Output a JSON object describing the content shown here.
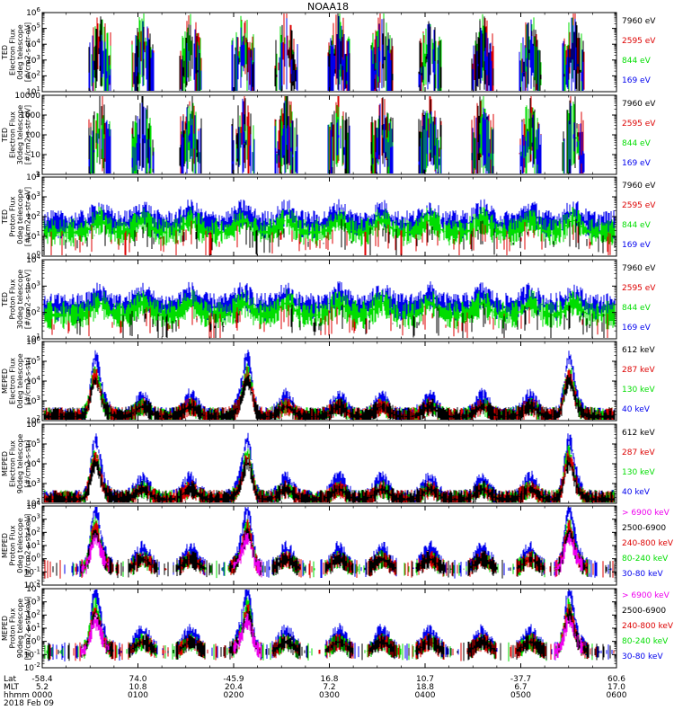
{
  "title": "NOAA18",
  "colors": {
    "black": "#000000",
    "red": "#dd0000",
    "green": "#00dd00",
    "blue": "#0000ee",
    "magenta": "#ee00ee"
  },
  "panels": [
    {
      "ylabel": [
        "TED",
        "Electron Flux",
        "0deg telescope",
        "[#/cm2-s-str-eV]"
      ],
      "yticks": [
        "10^1",
        "10^2",
        "10^3",
        "10^4",
        "10^5",
        "10^6"
      ],
      "legend": [
        {
          "label": "7960 eV",
          "color": "#000000"
        },
        {
          "label": "2595 eV",
          "color": "#dd0000"
        },
        {
          "label": "844 eV",
          "color": "#00dd00"
        },
        {
          "label": "169 eV",
          "color": "#0000ee"
        }
      ]
    },
    {
      "ylabel": [
        "TED",
        "Electron Flux",
        "30deg telescope",
        "[#/cm2-s-str-eV]"
      ],
      "yticks": [
        "1",
        "10",
        "100",
        "1000",
        "10000"
      ],
      "legend": [
        {
          "label": "7960 eV",
          "color": "#000000"
        },
        {
          "label": "2595 eV",
          "color": "#dd0000"
        },
        {
          "label": "844 eV",
          "color": "#00dd00"
        },
        {
          "label": "169 eV",
          "color": "#0000ee"
        }
      ]
    },
    {
      "ylabel": [
        "TED",
        "Proton Flux",
        "0deg telescope",
        "[#/cm2-s-str-eV]"
      ],
      "yticks": [
        "10^0",
        "10^1",
        "10^2",
        "10^3",
        "10^4"
      ],
      "legend": [
        {
          "label": "7960 eV",
          "color": "#000000"
        },
        {
          "label": "2595 eV",
          "color": "#dd0000"
        },
        {
          "label": "844 eV",
          "color": "#00dd00"
        },
        {
          "label": "169 eV",
          "color": "#0000ee"
        }
      ]
    },
    {
      "ylabel": [
        "TED",
        "Proton Flux",
        "30deg telescope",
        "[#/cm2-s-str-eV]"
      ],
      "yticks": [
        "10^1",
        "10^2",
        "10^3",
        "10^4"
      ],
      "legend": [
        {
          "label": "7960 eV",
          "color": "#000000"
        },
        {
          "label": "2595 eV",
          "color": "#dd0000"
        },
        {
          "label": "844 eV",
          "color": "#00dd00"
        },
        {
          "label": "169 eV",
          "color": "#0000ee"
        }
      ]
    },
    {
      "ylabel": [
        "MEPED",
        "Electron Flux",
        "0deg telescope",
        "[#/cm2-s-str]"
      ],
      "yticks": [
        "10^2",
        "10^3",
        "10^4",
        "10^5",
        "10^6"
      ],
      "legend": [
        {
          "label": "612 keV",
          "color": "#000000"
        },
        {
          "label": "287 keV",
          "color": "#dd0000"
        },
        {
          "label": "130 keV",
          "color": "#00dd00"
        },
        {
          "label": "40 keV",
          "color": "#0000ee"
        }
      ]
    },
    {
      "ylabel": [
        "MEPED",
        "Electron Flux",
        "90deg telescope",
        "[#/cm2-s-str]"
      ],
      "yticks": [
        "10^2",
        "10^3",
        "10^4",
        "10^5",
        "10^6"
      ],
      "legend": [
        {
          "label": "612 keV",
          "color": "#000000"
        },
        {
          "label": "287 keV",
          "color": "#dd0000"
        },
        {
          "label": "130 keV",
          "color": "#00dd00"
        },
        {
          "label": "40 keV",
          "color": "#0000ee"
        }
      ]
    },
    {
      "ylabel": [
        "MEPED",
        "Proton Flux",
        "0deg telescope",
        "[#/cm2-s-str-keV]"
      ],
      "yticks": [
        "10^-2",
        "10^-1",
        "10^0",
        "10^1",
        "10^2",
        "10^3",
        "10^4"
      ],
      "legend": [
        {
          "label": "> 6900 keV",
          "color": "#ee00ee"
        },
        {
          "label": "2500-6900",
          "color": "#000000"
        },
        {
          "label": "240-800 keV",
          "color": "#dd0000"
        },
        {
          "label": "80-240 keV",
          "color": "#00dd00"
        },
        {
          "label": "30-80 keV",
          "color": "#0000ee"
        }
      ]
    },
    {
      "ylabel": [
        "MEPED",
        "Proton Flux",
        "90deg telescope",
        "[#/cm2-s-str-keV]"
      ],
      "yticks": [
        "10^-2",
        "10^-1",
        "10^0",
        "10^1",
        "10^2",
        "10^3",
        "10^4"
      ],
      "legend": [
        {
          "label": "> 6900 keV",
          "color": "#ee00ee"
        },
        {
          "label": "2500-6900",
          "color": "#000000"
        },
        {
          "label": "240-800 keV",
          "color": "#dd0000"
        },
        {
          "label": "80-240 keV",
          "color": "#00dd00"
        },
        {
          "label": "30-80 keV",
          "color": "#0000ee"
        }
      ]
    }
  ],
  "xaxis": {
    "row_labels": [
      "Lat",
      "MLT",
      "hhmm",
      "2018 Feb 09"
    ],
    "ticks": [
      {
        "lat": "-58.4",
        "mlt": "5.2",
        "hhmm": "0000"
      },
      {
        "lat": "74.0",
        "mlt": "10.8",
        "hhmm": "0100"
      },
      {
        "lat": "-45.9",
        "mlt": "20.4",
        "hhmm": "0200"
      },
      {
        "lat": "16.8",
        "mlt": "7.2",
        "hhmm": "0300"
      },
      {
        "lat": "10.7",
        "mlt": "18.8",
        "hhmm": "0400"
      },
      {
        "lat": "-37.7",
        "mlt": "6.7",
        "hhmm": "0500"
      },
      {
        "lat": "60.6",
        "mlt": "17.0",
        "hhmm": "0600"
      }
    ]
  },
  "chart_data": {
    "type": "line",
    "title": "NOAA18",
    "x_range": [
      "0000",
      "0600"
    ],
    "y_scale": "log",
    "grid": false,
    "legend_position": "right",
    "passes_hours": [
      0.6,
      1.05,
      1.55,
      2.1,
      2.55,
      3.1,
      3.55,
      4.05,
      4.6,
      5.1,
      5.55
    ],
    "polar_peaks_hours": [
      0.55,
      2.15,
      5.5
    ]
  }
}
